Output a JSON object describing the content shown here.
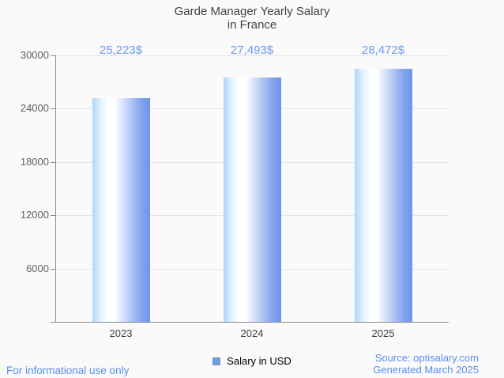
{
  "title": {
    "line1": "Garde Manager Yearly Salary",
    "line2": "in France"
  },
  "chart_data": {
    "type": "bar",
    "categories": [
      "2023",
      "2024",
      "2025"
    ],
    "values": [
      25223,
      27493,
      28472
    ],
    "value_labels": [
      "25,223$",
      "27,493$",
      "28,472$"
    ],
    "series": [
      {
        "name": "Salary in USD",
        "values": [
          25223,
          27493,
          28472
        ]
      }
    ],
    "title": "Garde Manager Yearly Salary in France",
    "xlabel": "",
    "ylabel": "",
    "ylim": [
      0,
      30000
    ],
    "yticks": [
      6000,
      12000,
      18000,
      24000,
      30000
    ],
    "grid": true,
    "legend_position": "bottom",
    "bar_color_left": "#aed6fa",
    "bar_color_highlight": "#ffffff",
    "bar_color_right": "#6e94e9"
  },
  "legend": {
    "label": "Salary in USD",
    "swatch_color": "#64a0f5"
  },
  "footer": {
    "left": "For informational use only",
    "source": "Source: optisalary.com",
    "generated": "Generated March 2025"
  },
  "colors": {
    "background": "#fafafa",
    "title_text": "#424242",
    "value_label_text": "#6d9aef",
    "axis_line": "#8c8c8c",
    "gridline": "#e6e6e6",
    "y_label_text": "#616161",
    "x_label_text": "#3f3f3f",
    "footer_text": "#5b8def"
  }
}
